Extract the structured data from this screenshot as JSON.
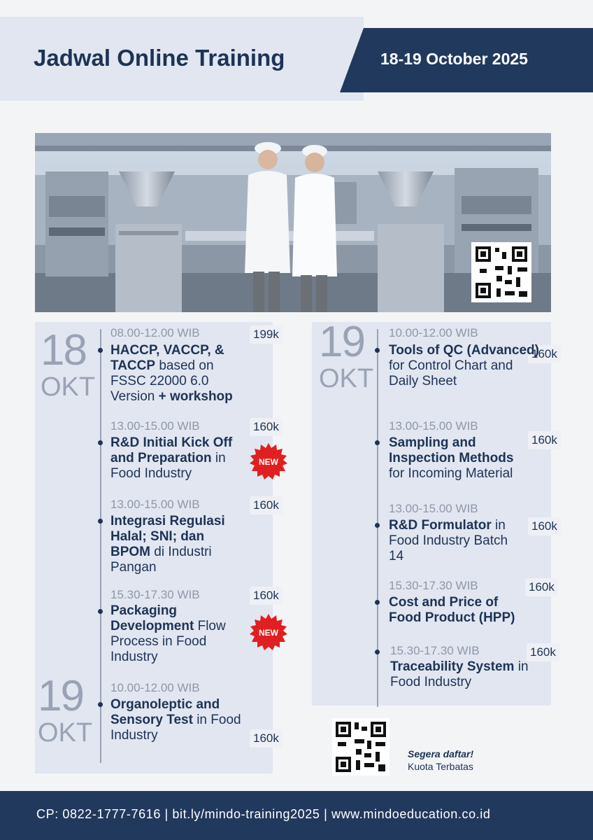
{
  "header": {
    "title": "Jadwal Online Training",
    "date": "18-19 October 2025"
  },
  "colors": {
    "navy": "#22395e",
    "light_panel": "#e1e6f1",
    "badge_red": "#e02020"
  },
  "day_blocks": [
    {
      "day": "18",
      "month": "OKT"
    },
    {
      "day": "19",
      "month": "OKT"
    },
    {
      "day": "19",
      "month": "OKT"
    }
  ],
  "left_courses": [
    {
      "time": "08.00-12.00 WIB",
      "price": "199k",
      "bold1": "HACCP, VACCP, & TACCP",
      "rest1": " based on FSSC 22000 6.0 Version ",
      "bold2": "+ workshop"
    },
    {
      "time": "13.00-15.00 WIB",
      "price": "160k",
      "bold1": "R&D Initial Kick Off and Preparation",
      "rest1": " in Food Industry",
      "badge": "NEW"
    },
    {
      "time": "13.00-15.00 WIB",
      "price": "160k",
      "bold1": "Integrasi Regulasi Halal; SNI; dan BPOM",
      "rest1": " di Industri Pangan"
    },
    {
      "time": "15.30-17.30 WIB",
      "price": "160k",
      "bold1": "Packaging Development",
      "rest1": " Flow Process in Food Industry",
      "badge": "NEW"
    },
    {
      "time": "10.00-12.00 WIB",
      "price": "160k",
      "bold1": "Organoleptic and Sensory Test",
      "rest1": " in Food Industry"
    }
  ],
  "right_courses": [
    {
      "time": "10.00-12.00 WIB",
      "price": "160k",
      "bold1": "Tools of QC (Advanced)",
      "rest1": " for Control Chart and Daily Sheet"
    },
    {
      "time": "13.00-15.00 WIB",
      "price": "160k",
      "bold1": "Sampling and Inspection Methods",
      "rest1": " for Incoming Material"
    },
    {
      "time": "13.00-15.00 WIB",
      "price": "160k",
      "bold1": "R&D Formulator",
      "rest1": "  in Food Industry Batch 14"
    },
    {
      "time": "15.30-17.30 WIB",
      "price": "160k",
      "bold1": "Cost and Price of Food Product (HPP)",
      "rest1": ""
    },
    {
      "time": "15.30-17.30 WIB",
      "price": "160k",
      "bold1": "Traceability System",
      "rest1": " in Food Industry"
    }
  ],
  "cta": {
    "line1": "Segera daftar!",
    "line2": "Kuota Terbatas"
  },
  "footer": {
    "text": "CP: 0822-1777-7616 | bit.ly/mindo-training2025 | www.mindoeducation.co.id"
  }
}
